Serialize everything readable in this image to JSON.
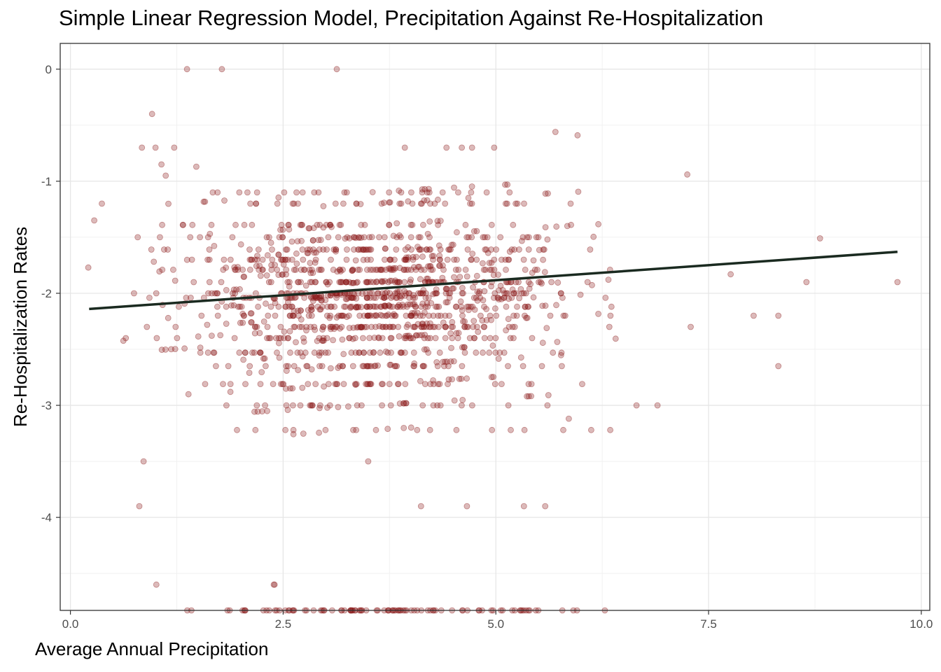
{
  "chart_data": {
    "type": "scatter",
    "title": "Simple Linear Regression Model, Precipitation Against Re-Hospitalization",
    "xlabel": "Average Annual Precipitation",
    "ylabel": "Re-Hospitalization Rates",
    "xlim": [
      -0.12,
      10.1
    ],
    "ylim": [
      -4.83,
      0.23
    ],
    "x_ticks": [
      0.0,
      2.5,
      5.0,
      7.5,
      10.0
    ],
    "x_tick_labels": [
      "0.0",
      "2.5",
      "5.0",
      "7.5",
      "10.0"
    ],
    "y_ticks": [
      0,
      -1,
      -2,
      -3,
      -4
    ],
    "y_tick_labels": [
      "0",
      "-1",
      "-2",
      "-3",
      "-4"
    ],
    "grid": true,
    "point_color": "#8b1a1a",
    "point_opacity": 0.3,
    "line_color": "#1a2a20",
    "regression_line": {
      "x": [
        0.22,
        9.72
      ],
      "y": [
        -2.14,
        -1.63
      ]
    },
    "outliers": {
      "x": [
        1.37,
        1.78,
        3.13,
        0.96,
        0.84,
        1.0,
        1.07,
        1.12,
        1.48,
        0.37,
        0.28,
        0.21,
        1.22,
        2.39,
        3.93,
        4.42,
        4.6,
        4.72,
        4.98,
        5.7,
        5.96,
        7.25,
        8.81,
        8.65,
        9.72,
        8.32,
        8.32,
        8.03,
        7.76,
        7.29,
        6.9,
        4.12,
        4.66,
        5.33,
        5.58,
        0.81,
        1.01,
        2.4,
        0.86,
        3.5
      ],
      "y": [
        0.0,
        0.0,
        0.0,
        -0.4,
        -0.7,
        -0.7,
        -0.85,
        -0.95,
        -0.87,
        -1.2,
        -1.35,
        -1.77,
        -0.7,
        -4.6,
        -0.7,
        -0.7,
        -0.7,
        -0.7,
        -0.7,
        -0.56,
        -0.59,
        -0.94,
        -1.51,
        -1.9,
        -1.9,
        -2.2,
        -2.65,
        -2.2,
        -1.83,
        -2.3,
        -3.0,
        -3.9,
        -3.9,
        -3.9,
        -3.9,
        -3.9,
        -4.6,
        -4.6,
        -3.5,
        -3.5
      ]
    },
    "point_count": 1500,
    "cloud": {
      "x_core_range": [
        0.3,
        6.6
      ],
      "y_levels": [
        -1.1,
        -1.2,
        -1.39,
        -1.5,
        -1.61,
        -1.7,
        -1.79,
        -1.9,
        -2.0,
        -2.04,
        -2.12,
        -2.2,
        -2.3,
        -2.4,
        -2.53,
        -2.65,
        -2.81,
        -3.0,
        -3.22
      ],
      "bottom_value": -4.83
    }
  }
}
